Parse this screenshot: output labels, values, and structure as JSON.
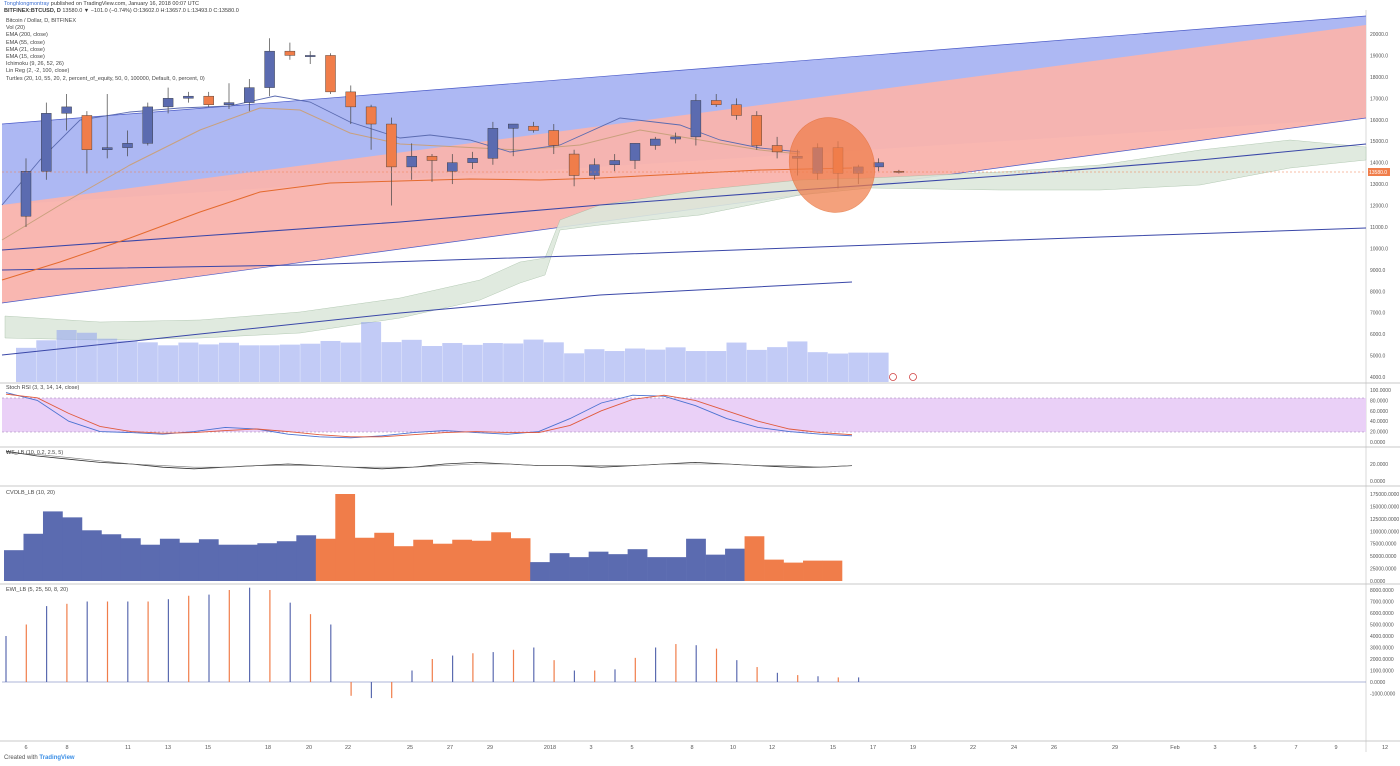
{
  "header": {
    "author": "Tonghlongmontray",
    "published": "published on TradingView.com, January 16, 2018 00:07 UTC",
    "ticker": "BITFINEX:BTCUSD, D",
    "ohlc": "13580.0 ▼ −101.0 (−0.74%) O:13602.0 H:13657.0 L:13493.0 C:13580.0"
  },
  "legend": [
    "Bitcoin / Dollar, D, BITFINEX",
    "Vol (20)",
    "EMA (200, close)",
    "EMA (55, close)",
    "EMA (21, close)",
    "EMA (15, close)",
    "Ichimoku (9, 26, 52, 26)",
    "Lin Reg (2, -2, 100, close)",
    "Turtles (20, 10, 55, 20, 2, percent_of_equity, 50, 0, 100000, Default, 0, percent, 0)"
  ],
  "pane_titles": {
    "stoch": "Stoch RSI (3, 3, 14, 14, close)",
    "wt": "WT_LB (10, 0.2, 2.5, 5)",
    "cvol": "CVOLB_LB (10, 20)",
    "ewi": "EWI_LB (5, 25, 50, 8, 20)"
  },
  "colors": {
    "bull": "#5b6bb0",
    "bear": "#f07d4a",
    "channel_upper": "#a9b4f2",
    "channel_lower": "#f9b3ad",
    "stoch_band": "#ead0f7",
    "ema200": "#3a47a8",
    "ichimoku_cloud": "#dde8dc",
    "highlight": "#f07d4a"
  },
  "price_axis_labels": [
    "20000.0",
    "19000.0",
    "18000.0",
    "17000.0",
    "16000.0",
    "15000.0",
    "14000.0",
    "13000.0",
    "12000.0",
    "11000.0",
    "10000.0",
    "9000.0",
    "8000.0",
    "7000.0",
    "6000.0",
    "5000.0",
    "4000.0"
  ],
  "current_price_label": "13580.0",
  "stoch_axis_labels": [
    "100.0000",
    "80.0000",
    "60.0000",
    "40.0000",
    "20.0000",
    "0.0000"
  ],
  "wt_axis_labels": [
    "20.0000",
    "0.0000"
  ],
  "cvol_axis_labels": [
    "175000.0000",
    "150000.0000",
    "125000.0000",
    "100000.0000",
    "75000.0000",
    "50000.0000",
    "25000.0000",
    "0.0000"
  ],
  "ewi_axis_labels": [
    "8000.0000",
    "7000.0000",
    "6000.0000",
    "5000.0000",
    "4000.0000",
    "3000.0000",
    "2000.0000",
    "1000.0000",
    "0.0000",
    "-1000.0000"
  ],
  "time_axis_labels": [
    "6",
    "8",
    "11",
    "13",
    "15",
    "18",
    "20",
    "22",
    "25",
    "27",
    "29",
    "2018",
    "3",
    "5",
    "8",
    "10",
    "12",
    "15",
    "17",
    "19",
    "22",
    "24",
    "26",
    "29",
    "Feb",
    "3",
    "5",
    "7",
    "9",
    "12"
  ],
  "footer": {
    "created_with": "Created with",
    "brand": "TradingView"
  },
  "chart_data": {
    "type": "candlestick",
    "symbol": "BTCUSD",
    "exchange": "BITFINEX",
    "timeframe": "D",
    "ylim": [
      4000,
      20000
    ],
    "candles": [
      {
        "o": 11500,
        "h": 14200,
        "l": 11000,
        "c": 13600
      },
      {
        "o": 13600,
        "h": 16800,
        "l": 13200,
        "c": 16300
      },
      {
        "o": 16300,
        "h": 17200,
        "l": 15500,
        "c": 16600
      },
      {
        "o": 16200,
        "h": 16400,
        "l": 13500,
        "c": 14600
      },
      {
        "o": 14600,
        "h": 17200,
        "l": 14200,
        "c": 14700
      },
      {
        "o": 14700,
        "h": 15500,
        "l": 14300,
        "c": 14900
      },
      {
        "o": 14900,
        "h": 16800,
        "l": 14800,
        "c": 16600
      },
      {
        "o": 16600,
        "h": 17500,
        "l": 16300,
        "c": 17000
      },
      {
        "o": 17000,
        "h": 17300,
        "l": 16800,
        "c": 17100
      },
      {
        "o": 17100,
        "h": 17300,
        "l": 16600,
        "c": 16700
      },
      {
        "o": 16700,
        "h": 17700,
        "l": 16500,
        "c": 16800
      },
      {
        "o": 16800,
        "h": 17900,
        "l": 16400,
        "c": 17500
      },
      {
        "o": 17500,
        "h": 19800,
        "l": 17100,
        "c": 19200
      },
      {
        "o": 19200,
        "h": 19600,
        "l": 18800,
        "c": 19000
      },
      {
        "o": 19000,
        "h": 19200,
        "l": 18600,
        "c": 19000
      },
      {
        "o": 19000,
        "h": 19100,
        "l": 17200,
        "c": 17300
      },
      {
        "o": 17300,
        "h": 17600,
        "l": 15800,
        "c": 16600
      },
      {
        "o": 16600,
        "h": 16700,
        "l": 14600,
        "c": 15800
      },
      {
        "o": 15800,
        "h": 16100,
        "l": 12000,
        "c": 13800
      },
      {
        "o": 13800,
        "h": 14900,
        "l": 13200,
        "c": 14300
      },
      {
        "o": 14300,
        "h": 14400,
        "l": 13100,
        "c": 14100
      },
      {
        "o": 13600,
        "h": 14400,
        "l": 13000,
        "c": 14000
      },
      {
        "o": 14000,
        "h": 14500,
        "l": 13700,
        "c": 14200
      },
      {
        "o": 14200,
        "h": 15900,
        "l": 13900,
        "c": 15600
      },
      {
        "o": 15600,
        "h": 15800,
        "l": 14300,
        "c": 15800
      },
      {
        "o": 15700,
        "h": 15900,
        "l": 15400,
        "c": 15500
      },
      {
        "o": 15500,
        "h": 15800,
        "l": 14400,
        "c": 14800
      },
      {
        "o": 14400,
        "h": 14600,
        "l": 12900,
        "c": 13400
      },
      {
        "o": 13400,
        "h": 14200,
        "l": 13200,
        "c": 13900
      },
      {
        "o": 13900,
        "h": 14400,
        "l": 13600,
        "c": 14100
      },
      {
        "o": 14100,
        "h": 14900,
        "l": 13700,
        "c": 14900
      },
      {
        "o": 14800,
        "h": 15200,
        "l": 14600,
        "c": 15100
      },
      {
        "o": 15100,
        "h": 15400,
        "l": 14900,
        "c": 15200
      },
      {
        "o": 15200,
        "h": 17200,
        "l": 14800,
        "c": 16900
      },
      {
        "o": 16900,
        "h": 17200,
        "l": 16600,
        "c": 16700
      },
      {
        "o": 16700,
        "h": 17000,
        "l": 16000,
        "c": 16200
      },
      {
        "o": 16200,
        "h": 16400,
        "l": 14600,
        "c": 14800
      },
      {
        "o": 14800,
        "h": 15200,
        "l": 14200,
        "c": 14500
      },
      {
        "o": 14200,
        "h": 14600,
        "l": 13400,
        "c": 14300
      },
      {
        "o": 13500,
        "h": 14900,
        "l": 13200,
        "c": 14700
      },
      {
        "o": 14700,
        "h": 15000,
        "l": 12800,
        "c": 13500
      },
      {
        "o": 13500,
        "h": 13900,
        "l": 13000,
        "c": 13800
      },
      {
        "o": 13800,
        "h": 14200,
        "l": 13600,
        "c": 14000
      },
      {
        "o": 13600,
        "h": 13660,
        "l": 13490,
        "c": 13580
      }
    ],
    "stoch_rsi": {
      "k": [
        95,
        80,
        40,
        20,
        18,
        15,
        20,
        28,
        25,
        15,
        10,
        8,
        12,
        18,
        22,
        18,
        15,
        20,
        45,
        75,
        90,
        88,
        70,
        45,
        28,
        20,
        15,
        12
      ],
      "d": [
        92,
        85,
        55,
        30,
        20,
        17,
        18,
        22,
        25,
        20,
        14,
        10,
        10,
        14,
        18,
        20,
        18,
        18,
        32,
        60,
        82,
        90,
        80,
        60,
        40,
        25,
        18,
        14
      ],
      "band": [
        20,
        80
      ]
    },
    "wt": {
      "line1": [
        8,
        5,
        3,
        1,
        0,
        -2,
        -3,
        -2,
        -1,
        0,
        -1,
        -2,
        -3,
        -2,
        0,
        1,
        0,
        -1,
        -1,
        -2,
        -1,
        0,
        1,
        0,
        -1,
        -2,
        -2,
        -1
      ],
      "line2": [
        7,
        6,
        4,
        2,
        0,
        -1,
        -2,
        -2,
        -1,
        -1,
        -1,
        -2,
        -2,
        -2,
        -1,
        0,
        0,
        -1,
        -1,
        -1,
        -1,
        0,
        0,
        0,
        -1,
        -1,
        -2,
        -1
      ]
    },
    "cvol": {
      "values": [
        62000,
        95000,
        140000,
        128000,
        102000,
        94000,
        86000,
        73000,
        85000,
        77000,
        84000,
        73000,
        73000,
        76000,
        80000,
        92000,
        85000,
        175000,
        87000,
        97000,
        70000,
        83000,
        75000,
        83000,
        81000,
        98000,
        86000,
        38000,
        56000,
        48000,
        59000,
        54000,
        64000,
        48000,
        48000,
        85000,
        53000,
        65000,
        90000,
        43000,
        37000,
        41000,
        41000
      ],
      "direction": [
        1,
        1,
        1,
        1,
        1,
        1,
        1,
        1,
        1,
        1,
        1,
        1,
        1,
        1,
        1,
        1,
        -1,
        -1,
        -1,
        -1,
        -1,
        -1,
        -1,
        -1,
        -1,
        -1,
        -1,
        1,
        1,
        1,
        1,
        1,
        1,
        1,
        1,
        1,
        1,
        1,
        -1,
        -1,
        -1,
        -1,
        -1
      ]
    },
    "ewi": {
      "values": [
        4000,
        5000,
        6600,
        6800,
        7000,
        7000,
        7000,
        7000,
        7200,
        7500,
        7600,
        8000,
        8200,
        8000,
        6900,
        5900,
        5000,
        -1200,
        -1400,
        -1400,
        1000,
        2000,
        2300,
        2500,
        2600,
        2800,
        3000,
        1900,
        1000,
        1000,
        1100,
        2100,
        3000,
        3300,
        3200,
        2900,
        1900,
        1300,
        800,
        600,
        500,
        400,
        400
      ]
    }
  }
}
